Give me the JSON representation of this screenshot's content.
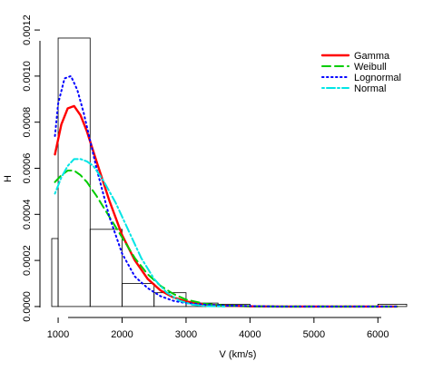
{
  "chart_data": {
    "type": "histogram_with_density_curves",
    "xlabel": "V (km/s)",
    "ylabel": "H",
    "xlim": [
      900,
      6450
    ],
    "ylim": [
      -2e-05,
      0.00122
    ],
    "x_ticks": [
      1000,
      2000,
      3000,
      4000,
      5000,
      6000
    ],
    "x_tick_labels": [
      "1000",
      "2000",
      "3000",
      "4000",
      "5000",
      "6000"
    ],
    "y_ticks": [
      0.0,
      0.0002,
      0.0004,
      0.0006,
      0.0008,
      0.001,
      0.0012
    ],
    "y_tick_labels": [
      "0.0000",
      "0.0002",
      "0.0004",
      "0.0006",
      "0.0008",
      "0.0010",
      "0.0012"
    ],
    "grid": false,
    "legend_position": "top-right",
    "histogram": {
      "bins": [
        {
          "x0": 900,
          "x1": 1000,
          "density": 0.000295
        },
        {
          "x0": 1000,
          "x1": 1500,
          "density": 0.001165
        },
        {
          "x0": 1500,
          "x1": 2000,
          "density": 0.000335
        },
        {
          "x0": 2000,
          "x1": 2500,
          "density": 0.0001
        },
        {
          "x0": 2500,
          "x1": 3000,
          "density": 6e-05
        },
        {
          "x0": 3000,
          "x1": 3500,
          "density": 1.5e-05
        },
        {
          "x0": 3500,
          "x1": 4000,
          "density": 1e-05
        },
        {
          "x0": 4000,
          "x1": 6000,
          "density": 2e-06
        },
        {
          "x0": 6000,
          "x1": 6450,
          "density": 1e-05
        }
      ]
    },
    "series": [
      {
        "name": "Gamma",
        "color": "#ff0000",
        "style": "solid",
        "x": [
          950,
          1050,
          1150,
          1250,
          1350,
          1450,
          1600,
          1800,
          2000,
          2200,
          2400,
          2600,
          2800,
          3000,
          3300,
          3600,
          4000,
          4500,
          5000,
          6000,
          6300
        ],
        "y": [
          0.00066,
          0.00079,
          0.00086,
          0.00087,
          0.00083,
          0.00076,
          0.00063,
          0.00046,
          0.00031,
          0.0002,
          0.00012,
          7e-05,
          4e-05,
          2.2e-05,
          9e-06,
          4e-06,
          1e-06,
          0.0,
          0.0,
          0.0,
          0.0
        ]
      },
      {
        "name": "Weibull",
        "color": "#00cc00",
        "style": "dashed",
        "x": [
          950,
          1050,
          1150,
          1250,
          1350,
          1450,
          1600,
          1800,
          2000,
          2200,
          2400,
          2600,
          2800,
          3000,
          3300,
          3600,
          4000,
          4500,
          5000,
          6000,
          6300
        ],
        "y": [
          0.00054,
          0.00057,
          0.00059,
          0.00059,
          0.00057,
          0.00054,
          0.00048,
          0.00039,
          0.0003,
          0.00021,
          0.00014,
          9e-05,
          5.5e-05,
          3e-05,
          1.2e-05,
          4e-06,
          1e-06,
          0.0,
          0.0,
          0.0,
          0.0
        ]
      },
      {
        "name": "Lognormal",
        "color": "#0000ff",
        "style": "dotted",
        "x": [
          950,
          1000,
          1100,
          1200,
          1300,
          1400,
          1500,
          1600,
          1800,
          2000,
          2200,
          2400,
          2600,
          2800,
          3000,
          3300,
          3600,
          4000,
          4500,
          5000,
          6000,
          6300
        ],
        "y": [
          0.00074,
          0.00088,
          0.00099,
          0.001,
          0.00094,
          0.00084,
          0.00072,
          0.0006,
          0.00039,
          0.00023,
          0.00013,
          8e-05,
          4.5e-05,
          2.5e-05,
          1.5e-05,
          8e-06,
          4e-06,
          2e-06,
          0.0,
          0.0,
          0.0,
          0.0
        ]
      },
      {
        "name": "Normal",
        "color": "#00e5e5",
        "style": "dotdash",
        "x": [
          950,
          1050,
          1150,
          1250,
          1350,
          1450,
          1550,
          1700,
          1900,
          2100,
          2300,
          2500,
          2700,
          2900,
          3100,
          3300,
          3600
        ],
        "y": [
          0.00049,
          0.00056,
          0.00061,
          0.00064,
          0.00064,
          0.00063,
          0.00061,
          0.00055,
          0.00045,
          0.00033,
          0.00021,
          0.00012,
          6e-05,
          2.5e-05,
          8e-06,
          2e-06,
          0.0
        ]
      }
    ]
  }
}
